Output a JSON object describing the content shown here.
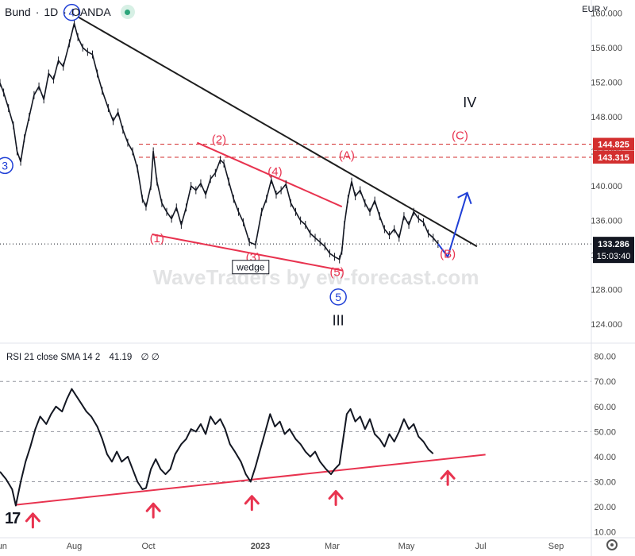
{
  "header": {
    "symbol": "Bund",
    "sep1": "·",
    "interval": "1D",
    "sep2": "·",
    "broker": "OANDA",
    "currency": "EUR"
  },
  "watermark": "WaveTraders by ew-forecast.com",
  "rsi_header": {
    "label": "RSI 21 close SMA 14 2",
    "value": "41.19",
    "extra1": "∅",
    "extra2": "∅"
  },
  "logo": "17",
  "colors": {
    "price": "#131722",
    "trendline": "#1e1e1e",
    "wedge": "#e8334f",
    "level": "#d32f2f",
    "wave_blue": "#1f3fd6",
    "projection": "#1f3fd6",
    "axis_text": "#4a4a4a"
  },
  "chart_data": [
    {
      "type": "line",
      "title": "Bund · 1D · OANDA",
      "x_ticks": [
        "Jun",
        "Aug",
        "Oct",
        "2023",
        "Mar",
        "May",
        "Jul",
        "Sep"
      ],
      "y_ticks": [
        124.0,
        128.0,
        132.0,
        136.0,
        140.0,
        144.0,
        148.0,
        152.0,
        156.0,
        160.0
      ],
      "y_range": [
        122.0,
        161.5
      ],
      "x_range": [
        "2022-06-01",
        "2023-09-30"
      ],
      "current_price": "133.286",
      "countdown": "15:03:40",
      "levels": [
        {
          "label": "144.825",
          "value": 144.825
        },
        {
          "label": "143.315",
          "value": 143.315
        }
      ],
      "series": [
        {
          "values": [
            [
              "2022-06-01",
              151.9
            ],
            [
              "2022-06-04",
              150.8
            ],
            [
              "2022-06-08",
              149.0
            ],
            [
              "2022-06-12",
              147.0
            ],
            [
              "2022-06-15",
              144.0
            ],
            [
              "2022-06-18",
              142.8
            ],
            [
              "2022-06-21",
              145.5
            ],
            [
              "2022-06-25",
              148.0
            ],
            [
              "2022-06-29",
              150.5
            ],
            [
              "2022-07-03",
              151.5
            ],
            [
              "2022-07-07",
              150.0
            ],
            [
              "2022-07-11",
              153.0
            ],
            [
              "2022-07-15",
              152.3
            ],
            [
              "2022-07-19",
              154.5
            ],
            [
              "2022-07-23",
              153.8
            ],
            [
              "2022-07-28",
              156.5
            ],
            [
              "2022-08-01",
              158.8
            ],
            [
              "2022-08-04",
              157.2
            ],
            [
              "2022-08-08",
              156.0
            ],
            [
              "2022-08-12",
              155.5
            ],
            [
              "2022-08-16",
              155.2
            ],
            [
              "2022-08-20",
              153.0
            ],
            [
              "2022-08-24",
              151.0
            ],
            [
              "2022-08-29",
              149.0
            ],
            [
              "2022-09-02",
              147.5
            ],
            [
              "2022-09-06",
              148.5
            ],
            [
              "2022-09-10",
              146.5
            ],
            [
              "2022-09-14",
              145.0
            ],
            [
              "2022-09-18",
              144.0
            ],
            [
              "2022-09-22",
              142.0
            ],
            [
              "2022-09-26",
              138.5
            ],
            [
              "2022-09-29",
              137.6
            ],
            [
              "2022-10-03",
              140.0
            ],
            [
              "2022-10-05",
              144.0
            ],
            [
              "2022-10-08",
              140.5
            ],
            [
              "2022-10-12",
              138.0
            ],
            [
              "2022-10-16",
              137.0
            ],
            [
              "2022-10-20",
              136.2
            ],
            [
              "2022-10-24",
              137.5
            ],
            [
              "2022-10-28",
              135.5
            ],
            [
              "2022-11-01",
              137.5
            ],
            [
              "2022-11-05",
              140.0
            ],
            [
              "2022-11-09",
              139.5
            ],
            [
              "2022-11-13",
              140.3
            ],
            [
              "2022-11-17",
              139.0
            ],
            [
              "2022-11-21",
              140.8
            ],
            [
              "2022-11-25",
              141.5
            ],
            [
              "2022-11-29",
              143.0
            ],
            [
              "2022-12-02",
              142.6
            ],
            [
              "2022-12-06",
              140.5
            ],
            [
              "2022-12-10",
              138.5
            ],
            [
              "2022-12-14",
              137.0
            ],
            [
              "2022-12-18",
              135.8
            ],
            [
              "2022-12-23",
              133.5
            ],
            [
              "2022-12-28",
              133.2
            ],
            [
              "2023-01-02",
              137.0
            ],
            [
              "2023-01-06",
              138.5
            ],
            [
              "2023-01-10",
              140.7
            ],
            [
              "2023-01-14",
              139.0
            ],
            [
              "2023-01-18",
              139.5
            ],
            [
              "2023-01-22",
              140.2
            ],
            [
              "2023-01-26",
              138.0
            ],
            [
              "2023-01-30",
              137.0
            ],
            [
              "2023-02-03",
              136.0
            ],
            [
              "2023-02-07",
              135.5
            ],
            [
              "2023-02-11",
              134.5
            ],
            [
              "2023-02-15",
              134.0
            ],
            [
              "2023-02-19",
              133.5
            ],
            [
              "2023-02-23",
              133.0
            ],
            [
              "2023-02-27",
              132.2
            ],
            [
              "2023-03-03",
              131.8
            ],
            [
              "2023-03-07",
              131.5
            ],
            [
              "2023-03-09",
              132.5
            ],
            [
              "2023-03-11",
              135.5
            ],
            [
              "2023-03-14",
              138.5
            ],
            [
              "2023-03-17",
              140.5
            ],
            [
              "2023-03-20",
              138.8
            ],
            [
              "2023-03-24",
              139.5
            ],
            [
              "2023-03-28",
              138.0
            ],
            [
              "2023-04-01",
              137.0
            ],
            [
              "2023-04-05",
              138.3
            ],
            [
              "2023-04-09",
              136.5
            ],
            [
              "2023-04-13",
              135.0
            ],
            [
              "2023-04-17",
              134.3
            ],
            [
              "2023-04-21",
              135.0
            ],
            [
              "2023-04-25",
              134.0
            ],
            [
              "2023-04-29",
              136.5
            ],
            [
              "2023-05-03",
              135.5
            ],
            [
              "2023-05-07",
              137.0
            ],
            [
              "2023-05-11",
              136.2
            ],
            [
              "2023-05-15",
              135.8
            ],
            [
              "2023-05-19",
              134.5
            ],
            [
              "2023-05-23",
              134.0
            ],
            [
              "2023-05-27",
              133.3
            ]
          ]
        }
      ],
      "annotations": [
        {
          "text": "(1)",
          "style": "wave-red",
          "x": "2022-10-08",
          "y": 133.5
        },
        {
          "text": "(2)",
          "style": "wave-red",
          "x": "2022-11-28",
          "y": 144.9
        },
        {
          "text": "(3)",
          "style": "wave-red",
          "x": "2022-12-26",
          "y": 131.3
        },
        {
          "text": "(4)",
          "style": "wave-red",
          "x": "2023-01-13",
          "y": 141.2
        },
        {
          "text": "(5)",
          "style": "wave-red",
          "x": "2023-03-05",
          "y": 129.6
        },
        {
          "text": "(A)",
          "style": "wave-red",
          "x": "2023-03-13",
          "y": 143.1
        },
        {
          "text": "(B)",
          "style": "wave-red",
          "x": "2023-06-04",
          "y": 131.7
        },
        {
          "text": "(C)",
          "style": "wave-red",
          "x": "2023-06-14",
          "y": 145.4
        },
        {
          "text": "3",
          "style": "circle-blue",
          "x": "2022-06-05",
          "y": 141.9
        },
        {
          "text": "4",
          "style": "circle-blue",
          "x": "2022-07-30",
          "y": 159.6
        },
        {
          "text": "5",
          "style": "circle-blue",
          "x": "2023-03-06",
          "y": 126.7
        },
        {
          "text": "III",
          "style": "roman",
          "x": "2023-03-06",
          "y": 123.9
        },
        {
          "text": "IV",
          "style": "roman",
          "x": "2023-06-22",
          "y": 149.1
        },
        {
          "text": "wedge",
          "style": "box",
          "x": "2022-12-24",
          "y": 130.2
        }
      ],
      "lines": [
        {
          "name": "trendline",
          "from": [
            "2022-07-27",
            160.2
          ],
          "to": [
            "2023-06-28",
            133.0
          ]
        },
        {
          "name": "wedge-top",
          "from": [
            "2022-11-10",
            145.0
          ],
          "to": [
            "2023-03-09",
            137.6
          ]
        },
        {
          "name": "wedge-bottom",
          "from": [
            "2022-10-04",
            134.4
          ],
          "to": [
            "2023-03-10",
            130.2
          ]
        },
        {
          "name": "projection",
          "from": [
            [
              "2023-05-27",
              133.3
            ],
            [
              "2023-06-04",
              131.8
            ],
            [
              "2023-06-20",
              139.2
            ]
          ]
        }
      ]
    },
    {
      "type": "line",
      "title": "RSI 21 close SMA 14 2",
      "y_ticks": [
        10.0,
        20.0,
        30.0,
        40.0,
        50.0,
        60.0,
        70.0,
        80.0
      ],
      "y_range": [
        8,
        84
      ],
      "bands": [
        70,
        50,
        30
      ],
      "series": [
        {
          "values": [
            [
              "2022-06-01",
              34
            ],
            [
              "2022-06-06",
              31
            ],
            [
              "2022-06-11",
              27
            ],
            [
              "2022-06-14",
              20.5
            ],
            [
              "2022-06-18",
              30
            ],
            [
              "2022-06-22",
              38
            ],
            [
              "2022-06-26",
              44
            ],
            [
              "2022-06-30",
              51
            ],
            [
              "2022-07-04",
              56
            ],
            [
              "2022-07-09",
              53
            ],
            [
              "2022-07-13",
              57
            ],
            [
              "2022-07-17",
              60
            ],
            [
              "2022-07-22",
              58
            ],
            [
              "2022-07-26",
              63
            ],
            [
              "2022-07-30",
              67
            ],
            [
              "2022-08-03",
              64
            ],
            [
              "2022-08-07",
              61
            ],
            [
              "2022-08-11",
              58
            ],
            [
              "2022-08-15",
              56
            ],
            [
              "2022-08-20",
              52
            ],
            [
              "2022-08-24",
              47
            ],
            [
              "2022-08-28",
              41
            ],
            [
              "2022-09-01",
              38
            ],
            [
              "2022-09-05",
              42
            ],
            [
              "2022-09-09",
              38
            ],
            [
              "2022-09-14",
              40
            ],
            [
              "2022-09-18",
              35
            ],
            [
              "2022-09-22",
              30
            ],
            [
              "2022-09-26",
              27
            ],
            [
              "2022-09-29",
              27.5
            ],
            [
              "2022-10-03",
              35
            ],
            [
              "2022-10-07",
              39
            ],
            [
              "2022-10-11",
              35
            ],
            [
              "2022-10-15",
              33
            ],
            [
              "2022-10-19",
              35
            ],
            [
              "2022-10-23",
              41
            ],
            [
              "2022-10-28",
              45
            ],
            [
              "2022-11-01",
              47
            ],
            [
              "2022-11-05",
              51
            ],
            [
              "2022-11-09",
              50
            ],
            [
              "2022-11-13",
              53
            ],
            [
              "2022-11-17",
              49
            ],
            [
              "2022-11-21",
              56
            ],
            [
              "2022-11-25",
              53
            ],
            [
              "2022-11-29",
              55
            ],
            [
              "2022-12-03",
              51
            ],
            [
              "2022-12-07",
              45
            ],
            [
              "2022-12-11",
              42
            ],
            [
              "2022-12-16",
              38
            ],
            [
              "2022-12-20",
              33
            ],
            [
              "2022-12-24",
              30
            ],
            [
              "2022-12-28",
              36
            ],
            [
              "2023-01-01",
              43
            ],
            [
              "2023-01-05",
              50
            ],
            [
              "2023-01-09",
              57
            ],
            [
              "2023-01-13",
              52
            ],
            [
              "2023-01-17",
              54
            ],
            [
              "2023-01-21",
              49
            ],
            [
              "2023-01-25",
              51
            ],
            [
              "2023-01-30",
              47
            ],
            [
              "2023-02-03",
              45
            ],
            [
              "2023-02-07",
              42
            ],
            [
              "2023-02-11",
              40
            ],
            [
              "2023-02-15",
              42
            ],
            [
              "2023-02-19",
              38
            ],
            [
              "2023-02-24",
              35
            ],
            [
              "2023-02-28",
              33
            ],
            [
              "2023-03-03",
              35
            ],
            [
              "2023-03-07",
              37
            ],
            [
              "2023-03-10",
              47
            ],
            [
              "2023-03-13",
              57
            ],
            [
              "2023-03-16",
              59
            ],
            [
              "2023-03-20",
              54
            ],
            [
              "2023-03-24",
              56
            ],
            [
              "2023-03-28",
              51
            ],
            [
              "2023-04-01",
              55
            ],
            [
              "2023-04-05",
              49
            ],
            [
              "2023-04-09",
              47
            ],
            [
              "2023-04-13",
              44
            ],
            [
              "2023-04-17",
              49
            ],
            [
              "2023-04-21",
              46
            ],
            [
              "2023-04-25",
              50
            ],
            [
              "2023-04-29",
              55
            ],
            [
              "2023-05-03",
              51
            ],
            [
              "2023-05-07",
              53
            ],
            [
              "2023-05-11",
              48
            ],
            [
              "2023-05-15",
              46
            ],
            [
              "2023-05-19",
              43
            ],
            [
              "2023-05-23",
              41.2
            ]
          ]
        }
      ],
      "lines": [
        {
          "name": "rsi-support",
          "from": [
            "2022-06-14",
            20.8
          ],
          "to": [
            "2023-07-05",
            40.8
          ]
        }
      ],
      "markers": [
        {
          "name": "up-arrow",
          "x": "2022-06-28",
          "y": 15
        },
        {
          "name": "up-arrow",
          "x": "2022-10-05",
          "y": 19
        },
        {
          "name": "up-arrow",
          "x": "2022-12-25",
          "y": 22
        },
        {
          "name": "up-arrow",
          "x": "2023-03-04",
          "y": 24
        },
        {
          "name": "up-arrow",
          "x": "2023-06-04",
          "y": 32
        }
      ]
    }
  ]
}
